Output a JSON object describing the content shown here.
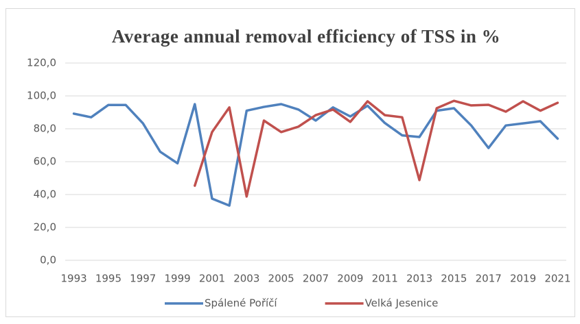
{
  "chart_data": {
    "type": "line",
    "title": "Average annual removal efficiency of TSS in %",
    "categories": [
      "1993",
      null,
      "1995",
      null,
      "1997",
      null,
      "1999",
      null,
      "2001",
      null,
      "2003",
      null,
      "2005",
      null,
      "2007",
      null,
      "2009",
      null,
      "2011",
      null,
      "2013",
      null,
      "2015",
      null,
      "2017",
      null,
      "2019",
      null,
      "2021"
    ],
    "series": [
      {
        "name": "Spálené Poříčí",
        "color": "#4f81bd",
        "values": [
          89.2,
          87.0,
          94.5,
          94.5,
          83.3,
          66.0,
          59.0,
          95.0,
          37.5,
          33.3,
          91.0,
          93.3,
          95.0,
          91.7,
          85.0,
          93.0,
          87.5,
          94.0,
          83.5,
          76.0,
          75.0,
          91.0,
          92.5,
          82.0,
          68.3,
          82.0,
          83.3,
          84.6,
          74.0
        ]
      },
      {
        "name": "Velká Jesenice",
        "color": "#c0504d",
        "values": [
          null,
          null,
          null,
          null,
          null,
          null,
          null,
          45.4,
          78.0,
          93.0,
          38.8,
          85.0,
          78.0,
          81.3,
          88.3,
          91.7,
          84.2,
          96.7,
          88.3,
          87.0,
          48.8,
          92.5,
          97.0,
          94.2,
          94.6,
          90.4,
          96.7,
          91.0,
          95.8
        ]
      }
    ],
    "ylim": [
      0,
      120
    ],
    "yticks": [
      {
        "value": 0,
        "label": "0,0"
      },
      {
        "value": 20,
        "label": "20,0"
      },
      {
        "value": 40,
        "label": "40,0"
      },
      {
        "value": 60,
        "label": "60,0"
      },
      {
        "value": 80,
        "label": "80,0"
      },
      {
        "value": 100,
        "label": "100,0"
      },
      {
        "value": 120,
        "label": "120,0"
      }
    ],
    "grid": true,
    "legend": "bottom"
  }
}
